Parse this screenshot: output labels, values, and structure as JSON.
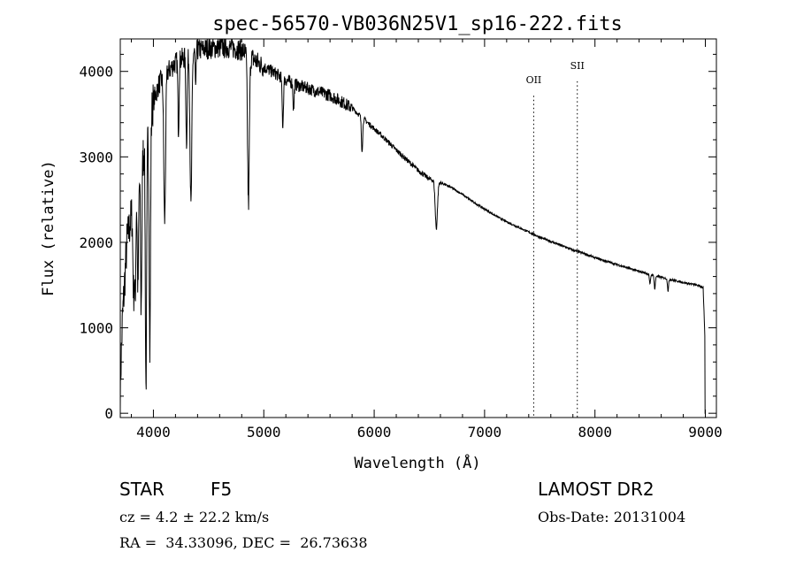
{
  "chart_data": {
    "type": "line",
    "title": "spec-56570-VB036N25V1_sp16-222.fits",
    "xlabel": "Wavelength (Å)",
    "ylabel": "Flux (relative)",
    "xlim": [
      3700,
      9100
    ],
    "ylim": [
      -50,
      4380
    ],
    "xticks": [
      "4000",
      "5000",
      "6000",
      "7000",
      "8000",
      "9000"
    ],
    "yticks": [
      "0",
      "1000",
      "2000",
      "3000",
      "4000"
    ],
    "grid": false,
    "legend": "none",
    "continuum": {
      "x": [
        3700,
        3720,
        3760,
        3800,
        3850,
        3900,
        3950,
        4000,
        4050,
        4100,
        4200,
        4300,
        4400,
        4500,
        4600,
        4700,
        4800,
        4900,
        5000,
        5100,
        5200,
        5300,
        5400,
        5500,
        5600,
        5700,
        5800,
        5900,
        6000,
        6100,
        6200,
        6300,
        6400,
        6500,
        6600,
        6700,
        6800,
        6900,
        7000,
        7100,
        7200,
        7300,
        7400,
        7500,
        7600,
        7700,
        7800,
        7900,
        8000,
        8100,
        8200,
        8300,
        8400,
        8500,
        8600,
        8700,
        8800,
        8900,
        8950,
        8980,
        8995,
        9000
      ],
      "y": [
        300,
        1100,
        2000,
        2300,
        2700,
        3000,
        3300,
        3650,
        3850,
        3950,
        4100,
        4180,
        4250,
        4270,
        4280,
        4280,
        4250,
        4150,
        4050,
        3980,
        3900,
        3840,
        3800,
        3760,
        3720,
        3650,
        3570,
        3450,
        3330,
        3210,
        3080,
        2960,
        2840,
        2740,
        2700,
        2640,
        2560,
        2470,
        2390,
        2310,
        2240,
        2180,
        2120,
        2060,
        2010,
        1960,
        1910,
        1870,
        1820,
        1780,
        1740,
        1700,
        1660,
        1625,
        1590,
        1560,
        1530,
        1505,
        1490,
        1470,
        900,
        0
      ]
    },
    "absorption_lines": [
      {
        "x": 3820,
        "depth": 1000,
        "width": 6
      },
      {
        "x": 3835,
        "depth": 1200,
        "width": 6
      },
      {
        "x": 3860,
        "depth": 1300,
        "width": 6
      },
      {
        "x": 3889,
        "depth": 1700,
        "width": 6
      },
      {
        "x": 3933,
        "depth": 2900,
        "width": 6
      },
      {
        "x": 3968,
        "depth": 2700,
        "width": 6
      },
      {
        "x": 4102,
        "depth": 1700,
        "width": 8
      },
      {
        "x": 4227,
        "depth": 800,
        "width": 5
      },
      {
        "x": 4300,
        "depth": 1000,
        "width": 6
      },
      {
        "x": 4340,
        "depth": 1800,
        "width": 8
      },
      {
        "x": 4383,
        "depth": 500,
        "width": 4
      },
      {
        "x": 4861,
        "depth": 1750,
        "width": 8
      },
      {
        "x": 5172,
        "depth": 550,
        "width": 6
      },
      {
        "x": 5270,
        "depth": 300,
        "width": 5
      },
      {
        "x": 5890,
        "depth": 380,
        "width": 6
      },
      {
        "x": 6563,
        "depth": 550,
        "width": 10
      },
      {
        "x": 8498,
        "depth": 120,
        "width": 5
      },
      {
        "x": 8542,
        "depth": 160,
        "width": 5
      },
      {
        "x": 8662,
        "depth": 140,
        "width": 5
      }
    ],
    "emission_markers": [
      {
        "label": "OII",
        "x": 7445,
        "label_y": 3860
      },
      {
        "label": "SII",
        "x": 7840,
        "label_y": 4030
      }
    ]
  },
  "captions": {
    "object_class": "STAR",
    "subclass": "F5",
    "redshift": "cz = 4.2 ± 22.2 km/s",
    "coords": "RA =  34.33096, DEC =  26.73638",
    "survey": "LAMOST DR2",
    "obs_date": "Obs-Date: 20131004"
  }
}
